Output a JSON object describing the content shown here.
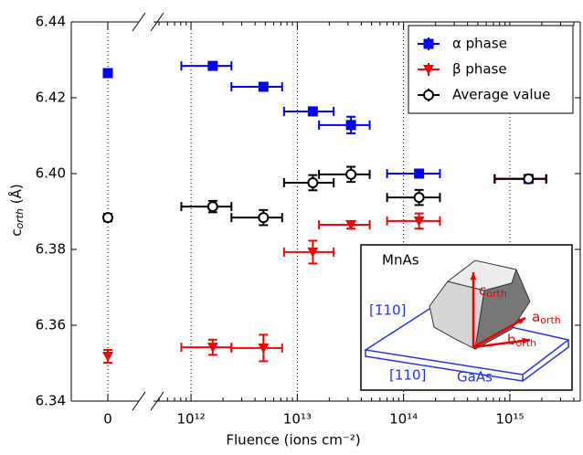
{
  "chart_data": {
    "type": "scatter",
    "xlabel": "Fluence (ions cm⁻²)",
    "ylabel": {
      "main": "c",
      "sub": "orth",
      "unit": "(Å)"
    },
    "xscale": "log",
    "xlim": [
      480000000000.0,
      4600000000000000.0
    ],
    "xticks": [
      0,
      {
        "value": 1000000000000.0,
        "label": "10¹²"
      },
      {
        "value": 10000000000000.0,
        "label": "10¹³"
      },
      {
        "value": 100000000000000.0,
        "label": "10¹⁴"
      },
      {
        "value": 1000000000000000.0,
        "label": "10¹⁵"
      }
    ],
    "ylim": [
      6.34,
      6.44
    ],
    "yticks": [
      6.34,
      6.36,
      6.38,
      {
        "value": 6.4,
        "label": "6.40"
      },
      6.42,
      6.44
    ],
    "grid": "x",
    "legend": "upper right",
    "series": [
      {
        "name": "α phase",
        "color": "#0000ff",
        "marker": "square",
        "x": [
          0,
          1600000000000.0,
          4800000000000.0,
          14000000000000.0,
          32000000000000.0,
          140000000000000.0,
          1500000000000000.0
        ],
        "values": [
          6.4265,
          6.4284,
          6.4229,
          6.4164,
          6.4128,
          6.4,
          6.3986
        ],
        "yerr": [
          0.0008,
          0.0008,
          0.0008,
          0.0008,
          0.0022,
          0.0008,
          0.0008
        ],
        "xmin": [
          null,
          810000000000.0,
          2400000000000.0,
          7500000000000.0,
          16000000000000.0,
          70000000000000.0,
          720000000000000.0
        ],
        "xmax": [
          null,
          2400000000000.0,
          7200000000000.0,
          22000000000000.0,
          48000000000000.0,
          220000000000000.0,
          2200000000000000.0
        ]
      },
      {
        "name": "β phase",
        "color": "#ff0000",
        "marker": "triangle",
        "x": [
          0,
          1600000000000.0,
          4800000000000.0,
          14000000000000.0,
          32000000000000.0,
          140000000000000.0,
          1500000000000000.0
        ],
        "values": [
          6.3518,
          6.3542,
          6.354,
          6.3793,
          6.3865,
          6.3875,
          6.3986
        ],
        "yerr": [
          0.0017,
          0.002,
          0.0035,
          0.003,
          0.001,
          0.002,
          0.0008
        ],
        "xmin": [
          null,
          810000000000.0,
          2400000000000.0,
          7500000000000.0,
          16000000000000.0,
          70000000000000.0,
          720000000000000.0
        ],
        "xmax": [
          null,
          2400000000000.0,
          7200000000000.0,
          22000000000000.0,
          48000000000000.0,
          220000000000000.0,
          2200000000000000.0
        ]
      },
      {
        "name": "Average value",
        "color": "#000000",
        "marker": "circle",
        "x": [
          0,
          1600000000000.0,
          4800000000000.0,
          14000000000000.0,
          32000000000000.0,
          140000000000000.0,
          1500000000000000.0
        ],
        "values": [
          6.3884,
          6.3913,
          6.3884,
          6.3976,
          6.3998,
          6.3937,
          6.3986
        ],
        "yerr": [
          0.001,
          0.0015,
          0.002,
          0.002,
          0.002,
          0.002,
          0.0008
        ],
        "xmin": [
          null,
          810000000000.0,
          2400000000000.0,
          7500000000000.0,
          16000000000000.0,
          70000000000000.0,
          720000000000000.0
        ],
        "xmax": [
          null,
          2400000000000.0,
          7200000000000.0,
          22000000000000.0,
          48000000000000.0,
          220000000000000.0,
          2200000000000000.0
        ]
      }
    ],
    "inset": {
      "material": "MnAs",
      "c": "c",
      "a": "a",
      "b": "b",
      "sub": "orth",
      "dir1": "[1̄10]",
      "dir2": "[110]",
      "substrate": "GaAs"
    }
  }
}
